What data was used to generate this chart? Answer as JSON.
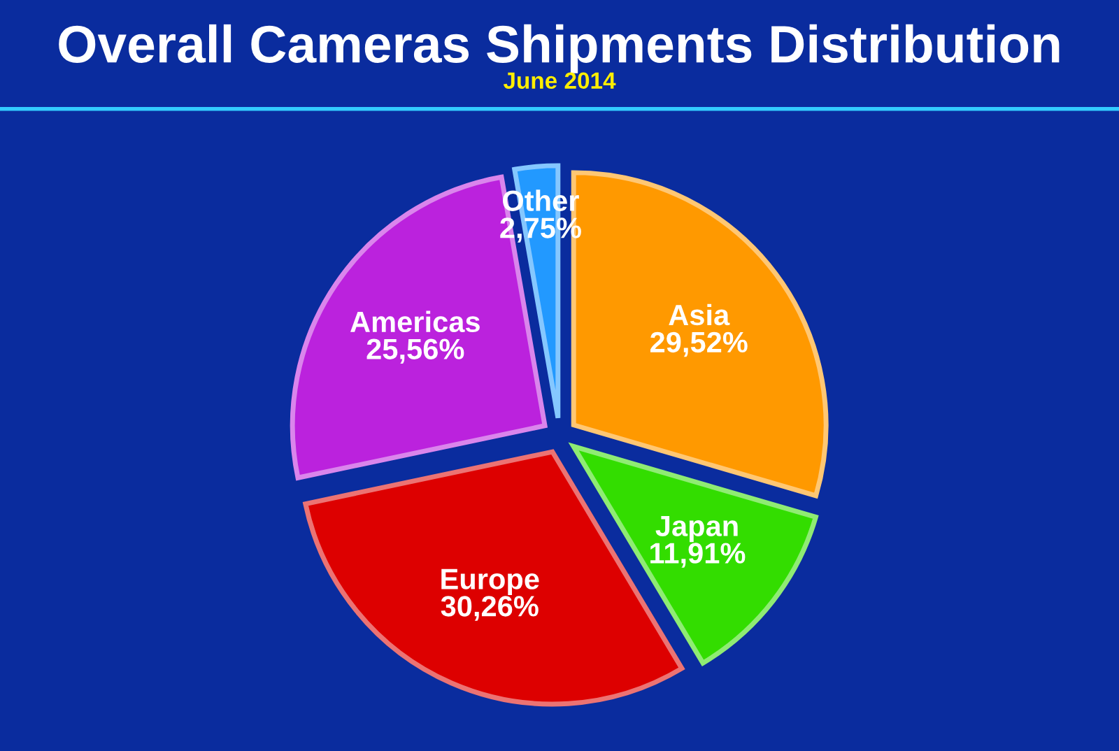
{
  "chart_data": {
    "type": "pie",
    "title": "Overall Cameras Shipments Distribution",
    "subtitle": "June 2014",
    "categories": [
      "Asia",
      "Japan",
      "Europe",
      "Americas",
      "Other"
    ],
    "values": [
      29.52,
      11.91,
      30.26,
      25.56,
      2.75
    ],
    "value_labels": [
      "29,52%",
      "11,91%",
      "30,26%",
      "25,56%",
      "2,75%"
    ],
    "colors": [
      "#ff9900",
      "#33dd00",
      "#dd0000",
      "#bb22dd",
      "#2299ff"
    ],
    "legend": false
  }
}
